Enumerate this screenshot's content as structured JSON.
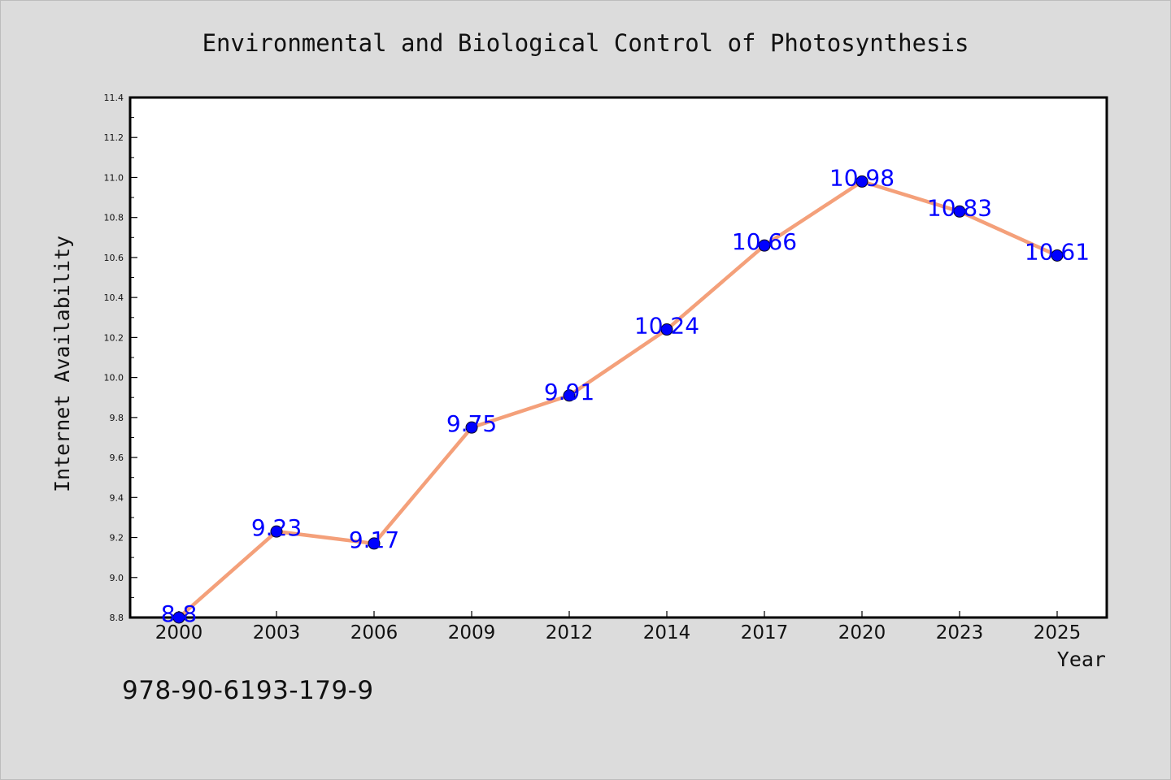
{
  "isbn_text": "978-90-6193-179-9",
  "chart_data": {
    "type": "line",
    "title": "Environmental and Biological Control of Photosynthesis",
    "xlabel": "Year",
    "ylabel": "Internet Availability",
    "categories": [
      "2000",
      "2003",
      "2006",
      "2009",
      "2012",
      "2014",
      "2017",
      "2020",
      "2023",
      "2025"
    ],
    "series": [
      {
        "values": [
          8.8,
          9.23,
          9.17,
          9.75,
          9.91,
          10.24,
          10.66,
          10.98,
          10.83,
          10.61
        ],
        "labels": [
          "8.8",
          "9.23",
          "9.17",
          "9.75",
          "9.91",
          "10.24",
          "10.66",
          "10.98",
          "10.83",
          "10.61"
        ]
      }
    ],
    "ylim": [
      8.8,
      11.4
    ],
    "yticks": [
      "8.8",
      "9.0",
      "9.2",
      "9.4",
      "9.6",
      "9.8",
      "10.0",
      "10.2",
      "10.4",
      "10.6",
      "10.8",
      "11.0",
      "11.2",
      "11.4"
    ],
    "grid": false,
    "colors": {
      "line": "#f4a07a",
      "marker": "#0000ff",
      "data_label": "#0000ff"
    }
  }
}
